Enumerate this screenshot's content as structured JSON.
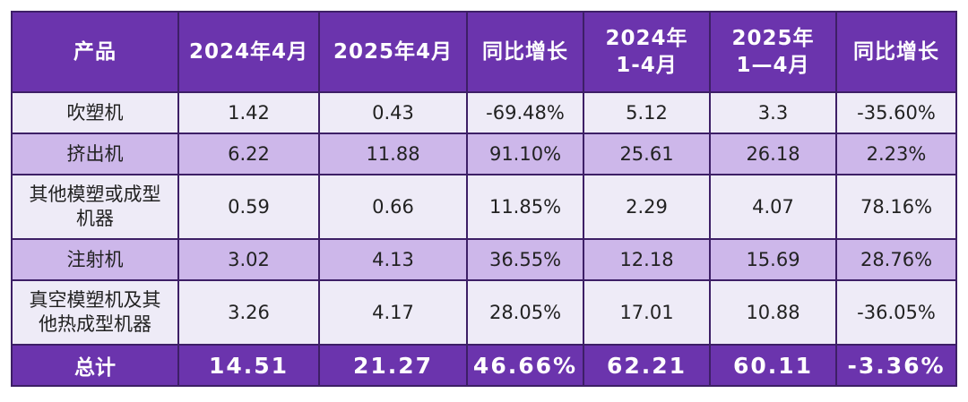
{
  "table": {
    "headers": [
      "产品",
      "2024年4月",
      "2025年4月",
      "同比增长",
      "2024年\n1-4月",
      "2025年\n1—4月",
      "同比增长"
    ],
    "rows": [
      [
        "吹塑机",
        "1.42",
        "0.43",
        "-69.48%",
        "5.12",
        "3.3",
        "-35.60%"
      ],
      [
        "挤出机",
        "6.22",
        "11.88",
        "91.10%",
        "25.61",
        "26.18",
        "2.23%"
      ],
      [
        "其他模塑或成型\n机器",
        "0.59",
        "0.66",
        "11.85%",
        "2.29",
        "4.07",
        "78.16%"
      ],
      [
        "注射机",
        "3.02",
        "4.13",
        "36.55%",
        "12.18",
        "15.69",
        "28.76%"
      ],
      [
        "真空模塑机及其\n他热成型机器",
        "3.26",
        "4.17",
        "28.05%",
        "17.01",
        "10.88",
        "-36.05%"
      ]
    ],
    "total": [
      "总计",
      "14.51",
      "21.27",
      "46.66%",
      "62.21",
      "60.11",
      "-3.36%"
    ]
  },
  "colors": {
    "header_bg": "#6b34ad",
    "row_light": "#eeebf7",
    "row_dark": "#cdb7ea",
    "border": "#3d1f66"
  }
}
